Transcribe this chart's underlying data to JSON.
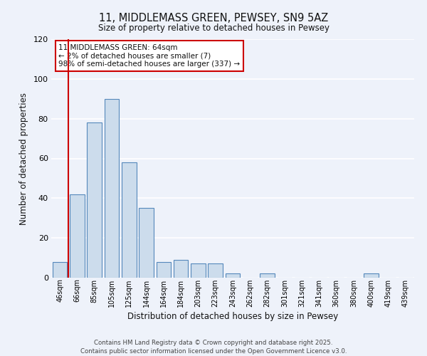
{
  "title": "11, MIDDLEMASS GREEN, PEWSEY, SN9 5AZ",
  "subtitle": "Size of property relative to detached houses in Pewsey",
  "xlabel": "Distribution of detached houses by size in Pewsey",
  "ylabel": "Number of detached properties",
  "bar_color": "#ccdcec",
  "bar_edge_color": "#5588bb",
  "background_color": "#eef2fa",
  "grid_color": "#ffffff",
  "categories": [
    "46sqm",
    "66sqm",
    "85sqm",
    "105sqm",
    "125sqm",
    "144sqm",
    "164sqm",
    "184sqm",
    "203sqm",
    "223sqm",
    "243sqm",
    "262sqm",
    "282sqm",
    "301sqm",
    "321sqm",
    "341sqm",
    "360sqm",
    "380sqm",
    "400sqm",
    "419sqm",
    "439sqm"
  ],
  "values": [
    8,
    42,
    78,
    90,
    58,
    35,
    8,
    9,
    7,
    7,
    2,
    0,
    2,
    0,
    0,
    0,
    0,
    0,
    2,
    0,
    0
  ],
  "ylim": [
    0,
    120
  ],
  "yticks": [
    0,
    20,
    40,
    60,
    80,
    100,
    120
  ],
  "vline_color": "#cc0000",
  "vline_x_index": 0.5,
  "annotation_title": "11 MIDDLEMASS GREEN: 64sqm",
  "annotation_line1": "← 2% of detached houses are smaller (7)",
  "annotation_line2": "98% of semi-detached houses are larger (337) →",
  "annotation_box_color": "#ffffff",
  "annotation_box_edge": "#cc0000",
  "footer_line1": "Contains HM Land Registry data © Crown copyright and database right 2025.",
  "footer_line2": "Contains public sector information licensed under the Open Government Licence v3.0."
}
